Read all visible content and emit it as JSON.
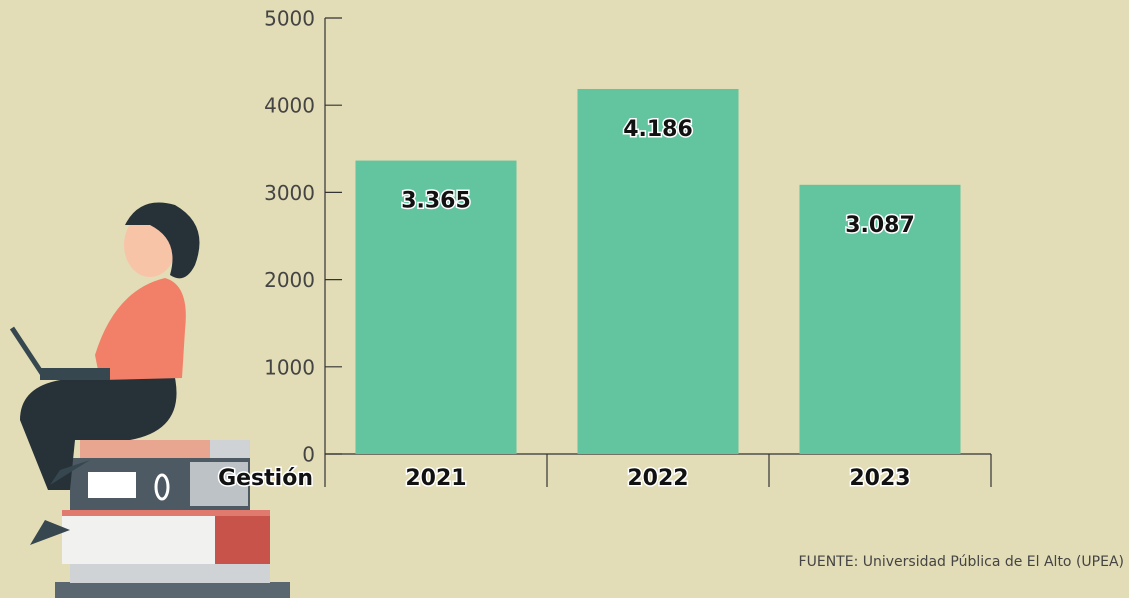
{
  "chart_data": {
    "type": "bar",
    "categories": [
      "2021",
      "2022",
      "2023"
    ],
    "values": [
      3365,
      4186,
      3087
    ],
    "value_labels": [
      "3.365",
      "4.186",
      "3.087"
    ],
    "color": "#63c4a0",
    "ylim": [
      0,
      5000
    ],
    "yticks": [
      0,
      1000,
      2000,
      3000,
      4000,
      5000
    ],
    "x_label": "Gestión",
    "source": "FUENTE: Universidad Pública de El Alto (UPEA)"
  }
}
